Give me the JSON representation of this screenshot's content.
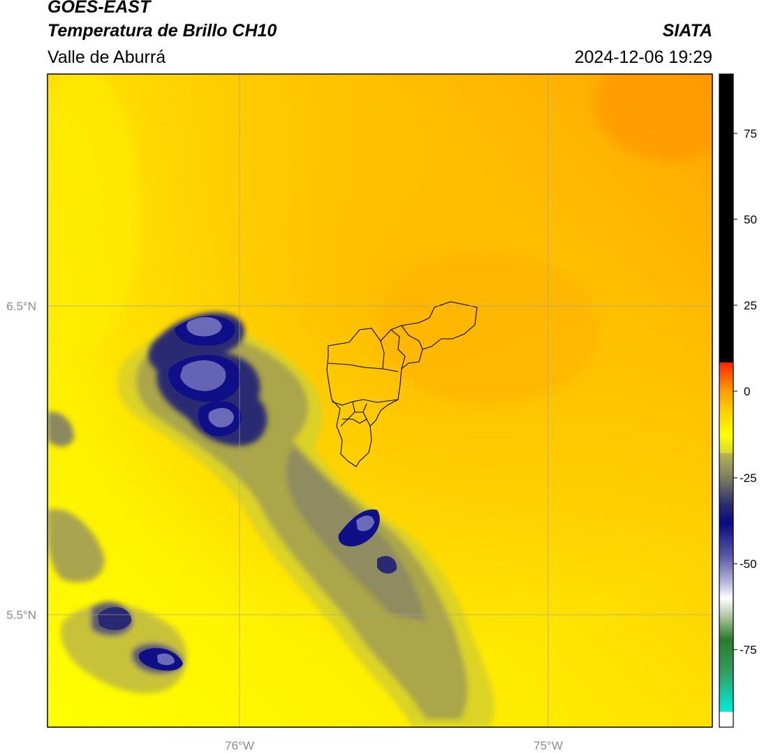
{
  "header": {
    "satellite": "GOES-EAST",
    "product": "Temperatura de Brillo CH10",
    "region": "Valle de Aburrá",
    "organization": "SIATA",
    "timestamp": "2024-12-06 19:29"
  },
  "map": {
    "lon_ticks": [
      "76°W",
      "75°W"
    ],
    "lat_ticks": [
      "6.5°N",
      "5.5°N"
    ]
  },
  "colorbar": {
    "ticks": [
      "75",
      "50",
      "25",
      "0",
      "-25",
      "-50",
      "-75"
    ],
    "colors": {
      "above": "#000000",
      "red": "#ff2200",
      "orange": "#ff8c00",
      "yellow": "#ffff00",
      "olive": "#a3a05a",
      "navy": "#0a0a80",
      "white": "#ffffff",
      "green": "#2a7a2a",
      "cyan": "#00eedd"
    }
  }
}
